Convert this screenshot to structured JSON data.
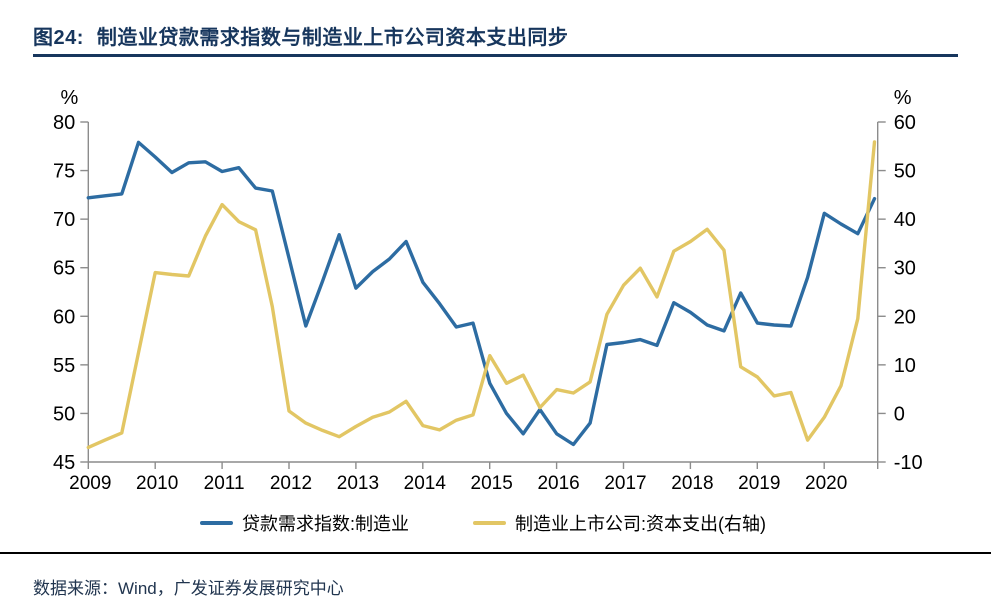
{
  "title": {
    "label": "图24:",
    "text": "制造业贷款需求指数与制造业上市公司资本支出同步",
    "color": "#17365d"
  },
  "source": {
    "text": "数据来源：Wind，广发证券发展研究中心"
  },
  "chart_data": {
    "type": "line",
    "title": "制造业贷款需求指数与制造业上市公司资本支出同步",
    "grid": "off",
    "legend_position": "bottom",
    "axis_color": "#8c8c8c",
    "x_tick_labels": [
      "2009",
      "2010",
      "2011",
      "2012",
      "2013",
      "2014",
      "2015",
      "2016",
      "2017",
      "2018",
      "2019",
      "2020"
    ],
    "left_axis": {
      "unit": "%",
      "min": 45,
      "max": 80,
      "ticks": [
        80,
        75,
        70,
        65,
        60,
        55,
        50,
        45
      ]
    },
    "right_axis": {
      "unit": "%",
      "min": -10,
      "max": 60,
      "ticks": [
        60,
        50,
        40,
        30,
        20,
        10,
        0,
        -10
      ]
    },
    "x": [
      "2009Q1",
      "2009Q2",
      "2009Q3",
      "2009Q4",
      "2010Q1",
      "2010Q2",
      "2010Q3",
      "2010Q4",
      "2011Q1",
      "2011Q2",
      "2011Q3",
      "2011Q4",
      "2012Q1",
      "2012Q2",
      "2012Q3",
      "2012Q4",
      "2013Q1",
      "2013Q2",
      "2013Q3",
      "2013Q4",
      "2014Q1",
      "2014Q2",
      "2014Q3",
      "2014Q4",
      "2015Q1",
      "2015Q2",
      "2015Q3",
      "2015Q4",
      "2016Q1",
      "2016Q2",
      "2016Q3",
      "2016Q4",
      "2017Q1",
      "2017Q2",
      "2017Q3",
      "2017Q4",
      "2018Q1",
      "2018Q2",
      "2018Q3",
      "2018Q4",
      "2019Q1",
      "2019Q2",
      "2019Q3",
      "2019Q4",
      "2020Q1",
      "2020Q2",
      "2020Q3",
      "2020Q4"
    ],
    "series": [
      {
        "name": "贷款需求指数:制造业",
        "axis": "left",
        "color": "#2d6ca2",
        "values": [
          72.2,
          72.4,
          72.6,
          77.9,
          76.4,
          74.8,
          75.8,
          75.9,
          74.9,
          75.3,
          73.2,
          72.9,
          66.0,
          59.0,
          63.6,
          68.4,
          62.9,
          64.6,
          65.9,
          67.7,
          63.5,
          61.3,
          58.9,
          59.3,
          53.1,
          50.0,
          47.9,
          50.4,
          47.9,
          46.8,
          49.0,
          57.1,
          57.3,
          57.6,
          57.0,
          61.4,
          60.4,
          59.1,
          58.5,
          62.4,
          59.3,
          59.1,
          59.0,
          64.0,
          70.6,
          69.5,
          68.5,
          72.1
        ]
      },
      {
        "name": "制造业上市公司:资本支出(右轴)",
        "axis": "right",
        "color": "#e2c664",
        "values": [
          -7.0,
          -5.5,
          -4.0,
          12.5,
          29.0,
          28.6,
          28.3,
          36.5,
          43.0,
          39.5,
          37.8,
          22.0,
          0.5,
          -2.0,
          -3.5,
          -4.8,
          -2.7,
          -0.8,
          0.3,
          2.5,
          -2.5,
          -3.4,
          -1.4,
          -0.3,
          11.9,
          6.2,
          7.9,
          1.2,
          4.9,
          4.2,
          6.5,
          20.4,
          26.4,
          29.9,
          24.0,
          33.4,
          35.4,
          37.9,
          33.6,
          9.6,
          7.5,
          3.6,
          4.3,
          -5.5,
          -0.8,
          5.7,
          19.5,
          55.9
        ]
      }
    ]
  }
}
